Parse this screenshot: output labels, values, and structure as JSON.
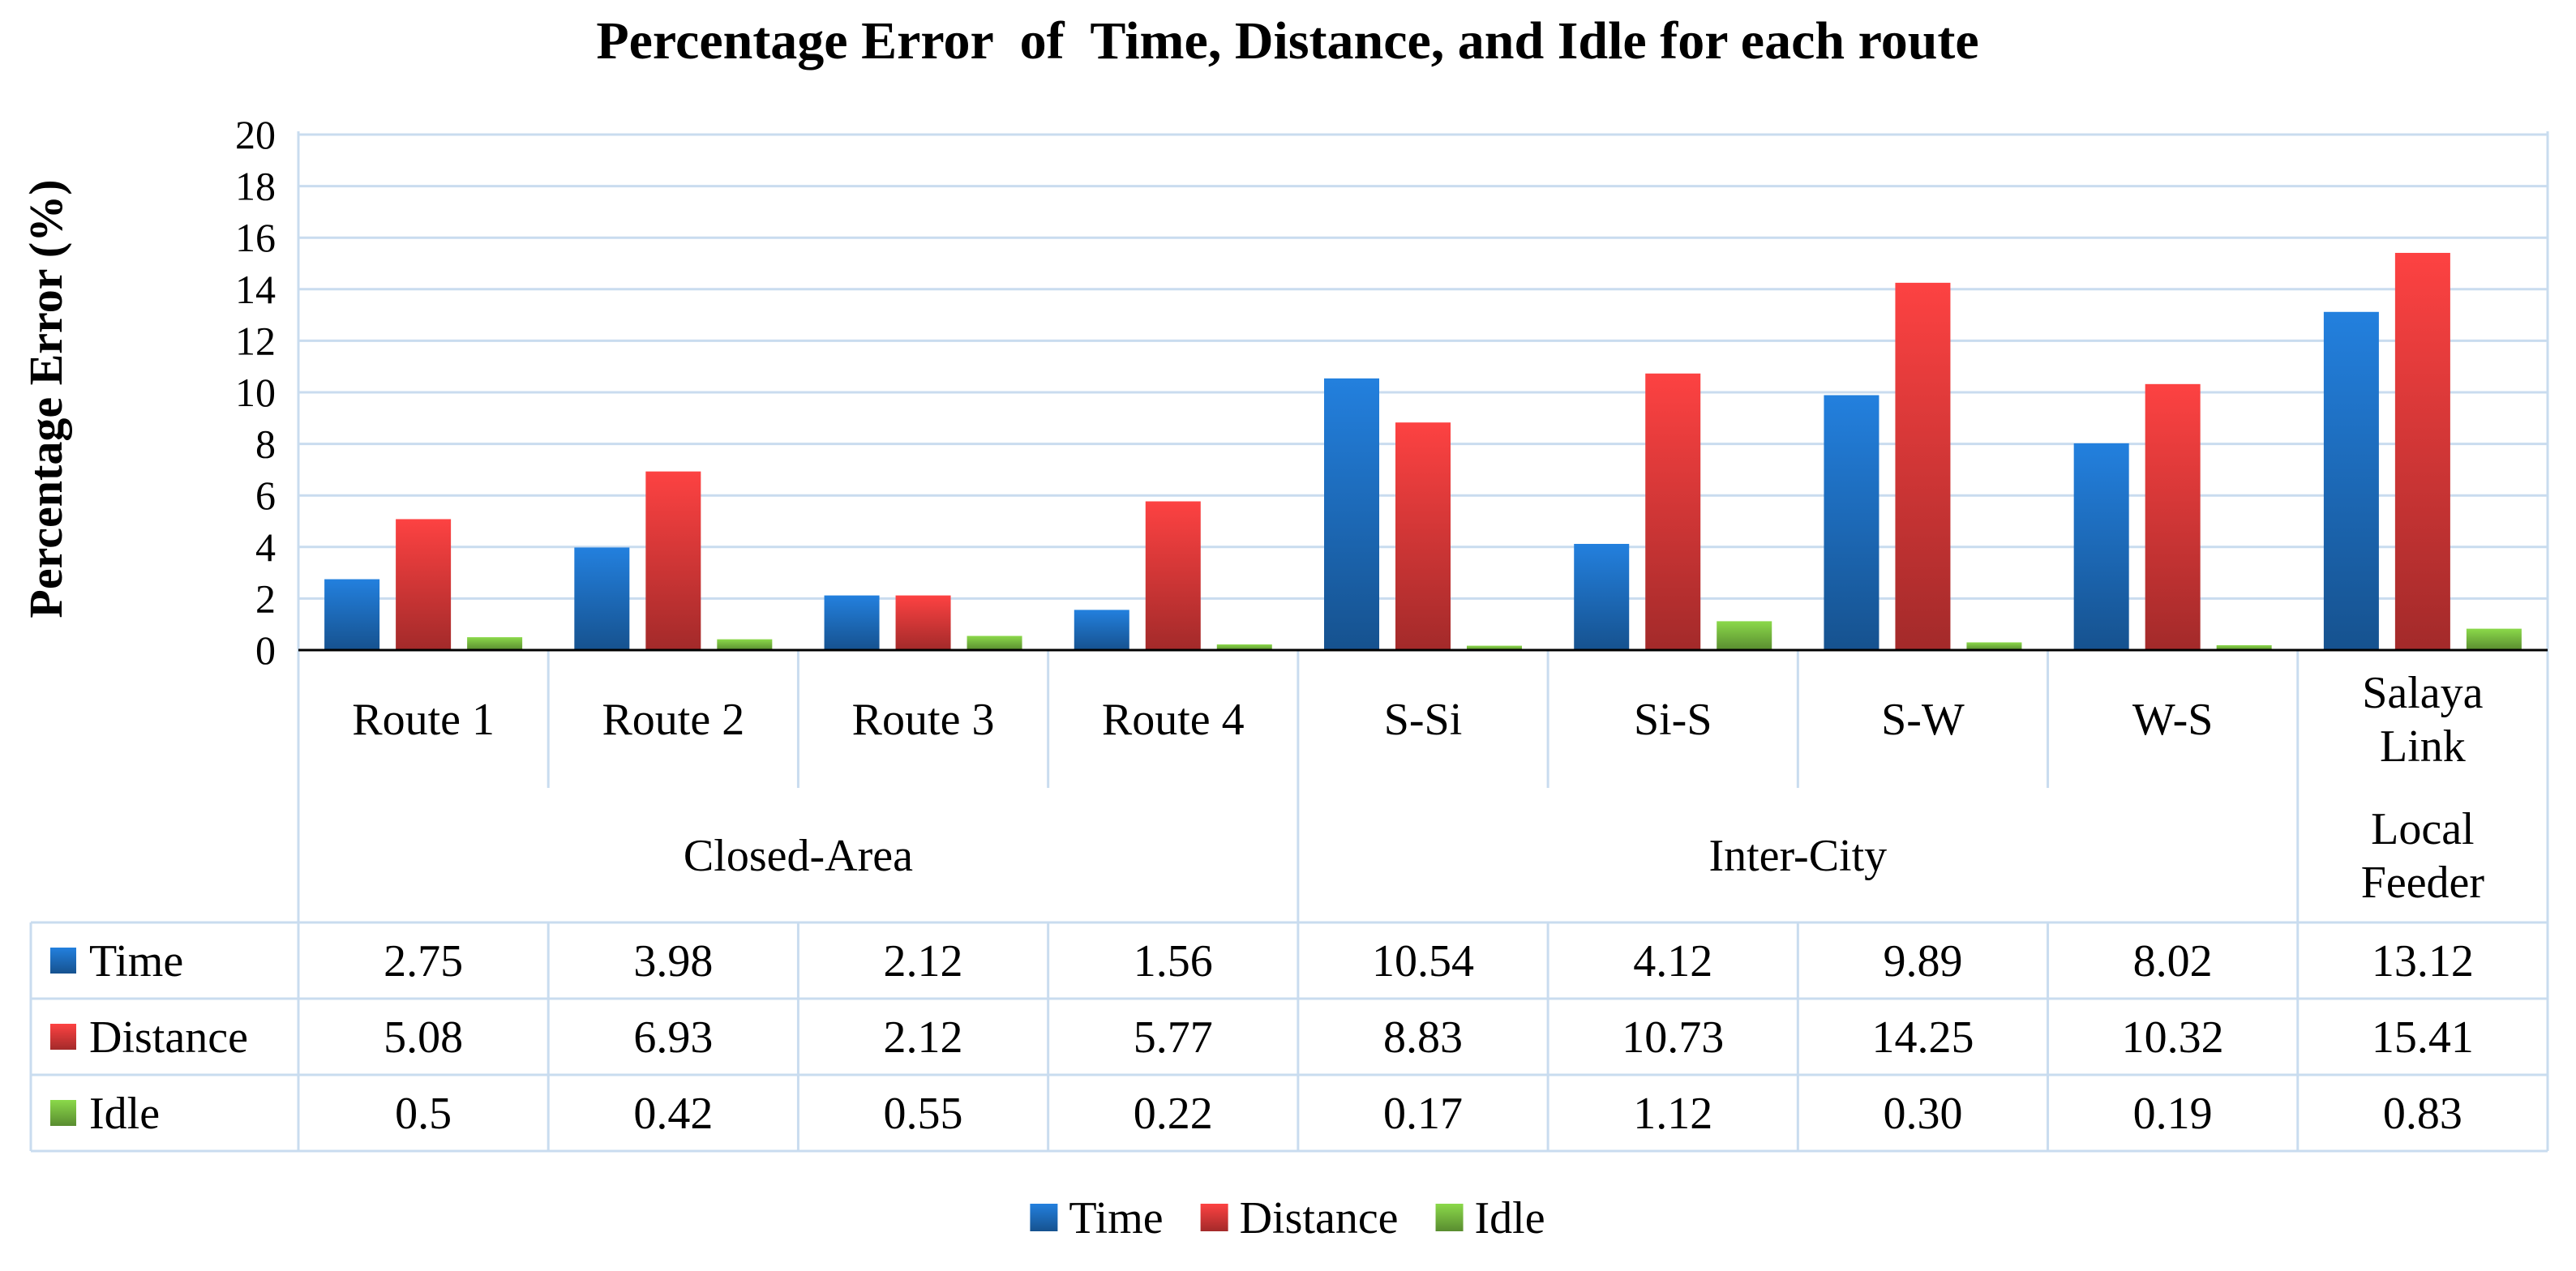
{
  "chart_data": {
    "type": "bar",
    "title": "Percentage Error  of  Time, Distance, and Idle for each route",
    "ylabel": "Percentage Error (%)",
    "ylim": [
      0,
      20
    ],
    "yticks": [
      0,
      2,
      4,
      6,
      8,
      10,
      12,
      14,
      16,
      18,
      20
    ],
    "grid": true,
    "legend_position": "bottom",
    "categories": [
      [
        "Route 1"
      ],
      [
        "Route 2"
      ],
      [
        "Route 3"
      ],
      [
        "Route 4"
      ],
      [
        "S-Si"
      ],
      [
        "Si-S"
      ],
      [
        "S-W"
      ],
      [
        "W-S"
      ],
      [
        "Salaya",
        "Link"
      ]
    ],
    "groups": [
      {
        "label": [
          "Closed-Area"
        ],
        "span": [
          0,
          3
        ]
      },
      {
        "label": [
          "Inter-City"
        ],
        "span": [
          4,
          7
        ]
      },
      {
        "label": [
          "Local",
          "Feeder"
        ],
        "span": [
          8,
          8
        ]
      }
    ],
    "series": [
      {
        "name": "Time",
        "color": "#1f72c6",
        "values": [
          2.75,
          3.98,
          2.12,
          1.56,
          10.54,
          4.12,
          9.89,
          8.02,
          13.12
        ],
        "labels": [
          "2.75",
          "3.98",
          "2.12",
          "1.56",
          "10.54",
          "4.12",
          "9.89",
          "8.02",
          "13.12"
        ]
      },
      {
        "name": "Distance",
        "color": "#e23b3b",
        "values": [
          5.08,
          6.93,
          2.12,
          5.77,
          8.83,
          10.73,
          14.25,
          10.32,
          15.41
        ],
        "labels": [
          "5.08",
          "6.93",
          "2.12",
          "5.77",
          "8.83",
          "10.73",
          "14.25",
          "10.32",
          "15.41"
        ]
      },
      {
        "name": "Idle",
        "color": "#7cc242",
        "values": [
          0.5,
          0.42,
          0.55,
          0.22,
          0.17,
          1.12,
          0.3,
          0.19,
          0.83
        ],
        "labels": [
          "0.5",
          "0.42",
          "0.55",
          "0.22",
          "0.17",
          "1.12",
          "0.30",
          "0.19",
          "0.83"
        ]
      }
    ]
  }
}
